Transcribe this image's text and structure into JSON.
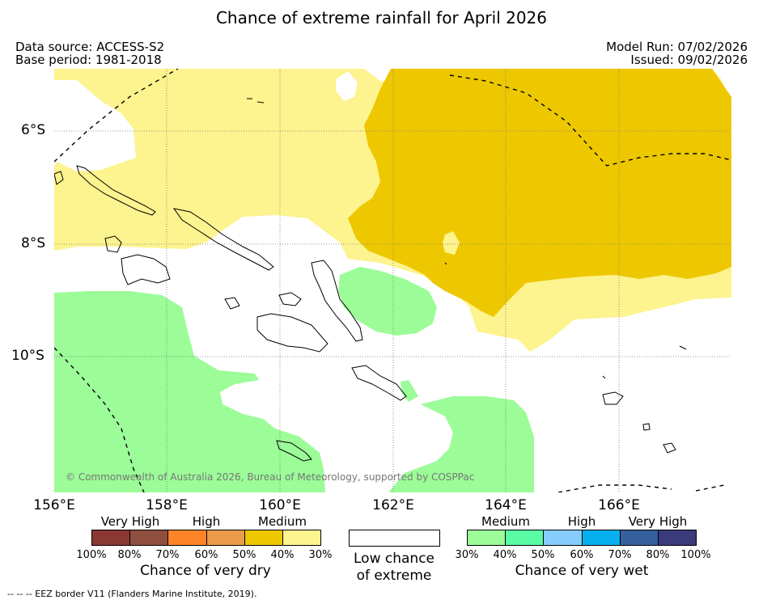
{
  "title": "Chance of extreme rainfall for April 2026",
  "meta": {
    "data_source": "Data source: ACCESS-S2",
    "base_period": "Base period: 1981-2018",
    "model_run": "Model Run: 07/02/2026",
    "issued": "Issued: 09/02/2026"
  },
  "map": {
    "lat_labels": [
      "6°S",
      "8°S",
      "10°S"
    ],
    "lon_labels": [
      "156°E",
      "158°E",
      "160°E",
      "162°E",
      "164°E",
      "166°E"
    ],
    "copyright": "© Commonwealth of Australia 2026, Bureau of Meteorology, supported by COSPPac",
    "colors": {
      "dry_medium_light": "#fdf38f",
      "dry_medium_dark": "#edc800",
      "wet_medium": "#9bfc98",
      "land_outline": "#000000",
      "eez_border": "#000000"
    }
  },
  "legend": {
    "dry": {
      "categories": [
        "Very High",
        "High",
        "Medium"
      ],
      "colors": [
        "#8b3833",
        "#8f4f3f",
        "#fe8428",
        "#ec9b4a",
        "#edc800",
        "#fdf38f"
      ],
      "ticks": [
        "100%",
        "80%",
        "70%",
        "60%",
        "50%",
        "40%",
        "30%"
      ],
      "title": "Chance of very dry"
    },
    "low": {
      "line1": "Low chance",
      "line2": "of extreme"
    },
    "wet": {
      "categories": [
        "Medium",
        "High",
        "Very High"
      ],
      "colors": [
        "#9bfc98",
        "#59fba4",
        "#86cdfb",
        "#06b0ee",
        "#365f9e",
        "#3b3a7b"
      ],
      "ticks": [
        "30%",
        "40%",
        "50%",
        "60%",
        "70%",
        "80%",
        "100%"
      ],
      "title": "Chance of very wet"
    }
  },
  "footer": "-- -- -- EEZ border V11 (Flanders Marine Institute, 2019)."
}
